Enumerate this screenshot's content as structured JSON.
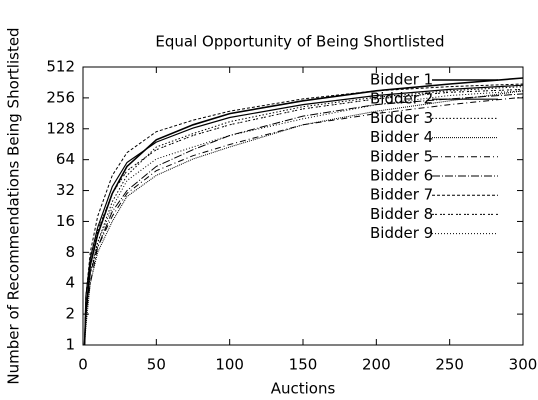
{
  "chart_data": {
    "type": "line",
    "title": "Equal Opportunity of Being Shortlisted",
    "x_label": "Auctions",
    "y_label": "Number of Recommendations Being Shortlisted",
    "yscale": "log",
    "x": [
      1,
      2,
      5,
      10,
      20,
      30,
      50,
      75,
      100,
      150,
      200,
      250,
      300
    ],
    "xlim": [
      0,
      300
    ],
    "xticks": [
      0,
      50,
      100,
      150,
      200,
      250,
      300
    ],
    "ylim": [
      1,
      512
    ],
    "yticks": [
      1,
      2,
      4,
      8,
      16,
      32,
      64,
      128,
      256,
      512
    ],
    "legend": "top-right",
    "series": [
      {
        "name": "Bidder 1",
        "color": "#000000",
        "values": [
          1,
          2,
          6,
          12,
          30,
          55,
          100,
          140,
          180,
          240,
          300,
          350,
          400
        ]
      },
      {
        "name": "Bidder 2",
        "color": "#000000",
        "values": [
          1,
          3,
          7,
          14,
          35,
          60,
          95,
          130,
          165,
          220,
          270,
          310,
          340
        ]
      },
      {
        "name": "Bidder 3",
        "color": "#000000",
        "values": [
          1,
          2,
          5,
          10,
          25,
          45,
          85,
          115,
          150,
          210,
          260,
          300,
          330
        ]
      },
      {
        "name": "Bidder 4",
        "color": "#000000",
        "values": [
          1,
          1.5,
          4,
          8,
          16,
          28,
          45,
          65,
          85,
          140,
          190,
          240,
          300
        ]
      },
      {
        "name": "Bidder 5",
        "color": "#000000",
        "values": [
          1,
          2,
          4,
          9,
          18,
          30,
          50,
          70,
          90,
          140,
          180,
          220,
          260
        ]
      },
      {
        "name": "Bidder 6",
        "color": "#000000",
        "values": [
          1,
          2,
          5,
          9,
          20,
          32,
          55,
          80,
          110,
          170,
          220,
          250,
          280
        ]
      },
      {
        "name": "Bidder 7",
        "color": "#000000",
        "values": [
          1,
          3,
          8,
          18,
          45,
          75,
          120,
          155,
          190,
          250,
          300,
          330,
          350
        ]
      },
      {
        "name": "Bidder 8",
        "color": "#000000",
        "values": [
          1,
          2,
          6,
          13,
          30,
          50,
          80,
          110,
          140,
          200,
          250,
          290,
          310
        ]
      },
      {
        "name": "Bidder 9",
        "color": "#000000",
        "values": [
          1,
          2,
          5,
          10,
          22,
          40,
          65,
          85,
          110,
          160,
          220,
          270,
          300
        ]
      }
    ]
  }
}
